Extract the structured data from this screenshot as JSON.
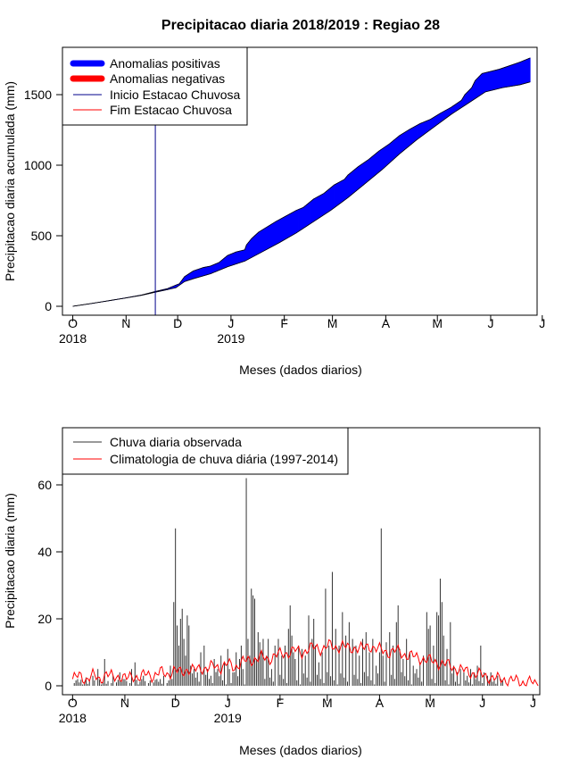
{
  "title": "Precipitacao diaria 2018/2019 : Regiao 28",
  "colors": {
    "positive": "#0000ff",
    "negative": "#ff0000",
    "start_line": "#00008b",
    "end_line": "#ff0000",
    "observed": "#333333",
    "climatology": "#ff0000"
  },
  "chart_data": [
    {
      "type": "area",
      "name": "accumulated",
      "ylabel": "Precipitacao diaria acumulada (mm)",
      "xlabel": "Meses (dados diarios)",
      "ylim": [
        0,
        1800
      ],
      "yticks": [
        0,
        500,
        1000,
        1500
      ],
      "xlim_days": [
        -6,
        270
      ],
      "month_ticks": [
        {
          "day": 0,
          "label": "O"
        },
        {
          "day": 31,
          "label": "N"
        },
        {
          "day": 61,
          "label": "D"
        },
        {
          "day": 92,
          "label": "J"
        },
        {
          "day": 123,
          "label": "F"
        },
        {
          "day": 151,
          "label": "M"
        },
        {
          "day": 182,
          "label": "A"
        },
        {
          "day": 212,
          "label": "M"
        },
        {
          "day": 243,
          "label": "J"
        },
        {
          "day": 273,
          "label": "J"
        }
      ],
      "year_labels": [
        {
          "day": 0,
          "label": "2018"
        },
        {
          "day": 92,
          "label": "2019"
        }
      ],
      "legend": {
        "position": "top-left",
        "entries": [
          {
            "label": "Anomalias positivas",
            "style": "thick",
            "color": "#0000ff"
          },
          {
            "label": "Anomalias negativas",
            "style": "thick",
            "color": "#ff0000"
          },
          {
            "label": "Inicio Estacao Chuvosa",
            "style": "thin",
            "color": "#00008b"
          },
          {
            "label": "Fim Estacao Chuvosa",
            "style": "thin",
            "color": "#ff0000"
          }
        ]
      },
      "season_start_day": 48,
      "observed_points": [
        [
          0,
          0
        ],
        [
          10,
          18
        ],
        [
          20,
          38
        ],
        [
          30,
          58
        ],
        [
          40,
          80
        ],
        [
          48,
          105
        ],
        [
          55,
          125
        ],
        [
          58,
          140
        ],
        [
          60,
          150
        ],
        [
          62,
          160
        ],
        [
          65,
          210
        ],
        [
          70,
          250
        ],
        [
          76,
          275
        ],
        [
          80,
          285
        ],
        [
          85,
          310
        ],
        [
          90,
          360
        ],
        [
          95,
          385
        ],
        [
          100,
          400
        ],
        [
          101,
          435
        ],
        [
          104,
          480
        ],
        [
          108,
          525
        ],
        [
          112,
          555
        ],
        [
          118,
          600
        ],
        [
          124,
          640
        ],
        [
          130,
          680
        ],
        [
          134,
          700
        ],
        [
          140,
          760
        ],
        [
          146,
          800
        ],
        [
          152,
          860
        ],
        [
          158,
          900
        ],
        [
          160,
          930
        ],
        [
          166,
          990
        ],
        [
          172,
          1040
        ],
        [
          178,
          1100
        ],
        [
          184,
          1150
        ],
        [
          190,
          1210
        ],
        [
          196,
          1255
        ],
        [
          202,
          1295
        ],
        [
          208,
          1325
        ],
        [
          214,
          1370
        ],
        [
          220,
          1410
        ],
        [
          226,
          1460
        ],
        [
          228,
          1500
        ],
        [
          232,
          1550
        ],
        [
          234,
          1600
        ],
        [
          238,
          1650
        ],
        [
          248,
          1680
        ],
        [
          260,
          1730
        ],
        [
          266,
          1760
        ]
      ],
      "climatology_points": [
        [
          0,
          0
        ],
        [
          10,
          18
        ],
        [
          20,
          37
        ],
        [
          30,
          57
        ],
        [
          40,
          78
        ],
        [
          48,
          100
        ],
        [
          55,
          118
        ],
        [
          60,
          132
        ],
        [
          65,
          175
        ],
        [
          70,
          195
        ],
        [
          80,
          230
        ],
        [
          90,
          280
        ],
        [
          100,
          320
        ],
        [
          110,
          385
        ],
        [
          120,
          450
        ],
        [
          130,
          520
        ],
        [
          140,
          600
        ],
        [
          150,
          680
        ],
        [
          160,
          770
        ],
        [
          170,
          870
        ],
        [
          180,
          970
        ],
        [
          190,
          1080
        ],
        [
          200,
          1180
        ],
        [
          210,
          1270
        ],
        [
          220,
          1360
        ],
        [
          230,
          1440
        ],
        [
          240,
          1520
        ],
        [
          250,
          1550
        ],
        [
          260,
          1570
        ],
        [
          266,
          1590
        ]
      ]
    },
    {
      "type": "bar",
      "name": "daily",
      "ylabel": "Precipitacao diaria (mm)",
      "xlabel": "Meses (dados diarios)",
      "ylim": [
        0,
        75
      ],
      "yticks": [
        0,
        20,
        40,
        60
      ],
      "xlim_days": [
        -6,
        277
      ],
      "legend": {
        "position": "top-left",
        "entries": [
          {
            "label": "Chuva diaria observada",
            "color": "#333333"
          },
          {
            "label": "Climatologia de chuva diária (1997-2014)",
            "color": "#ff0000"
          }
        ]
      },
      "observed_peaks": [
        [
          3,
          2
        ],
        [
          8,
          2.5
        ],
        [
          12,
          3
        ],
        [
          15,
          5
        ],
        [
          19,
          8
        ],
        [
          24,
          3
        ],
        [
          28,
          4
        ],
        [
          31,
          2
        ],
        [
          35,
          5
        ],
        [
          37,
          7
        ],
        [
          42,
          3
        ],
        [
          50,
          2
        ],
        [
          54,
          3
        ],
        [
          58,
          6
        ],
        [
          60,
          25
        ],
        [
          61,
          47
        ],
        [
          62,
          18
        ],
        [
          63,
          12
        ],
        [
          64,
          20
        ],
        [
          65,
          23
        ],
        [
          66,
          14
        ],
        [
          67,
          9
        ],
        [
          68,
          21
        ],
        [
          69,
          18
        ],
        [
          70,
          6
        ],
        [
          72,
          5
        ],
        [
          74,
          4
        ],
        [
          76,
          10
        ],
        [
          78,
          12
        ],
        [
          80,
          5
        ],
        [
          82,
          3
        ],
        [
          84,
          8
        ],
        [
          86,
          5
        ],
        [
          88,
          9
        ],
        [
          90,
          7
        ],
        [
          92,
          11
        ],
        [
          93,
          5
        ],
        [
          95,
          4
        ],
        [
          97,
          10
        ],
        [
          99,
          8
        ],
        [
          100,
          12
        ],
        [
          101,
          5
        ],
        [
          103,
          62
        ],
        [
          104,
          14
        ],
        [
          105,
          9
        ],
        [
          106,
          29
        ],
        [
          107,
          27
        ],
        [
          108,
          26
        ],
        [
          109,
          8
        ],
        [
          110,
          16
        ],
        [
          111,
          13
        ],
        [
          112,
          10
        ],
        [
          113,
          14
        ],
        [
          115,
          9
        ],
        [
          116,
          14
        ],
        [
          118,
          5
        ],
        [
          120,
          12
        ],
        [
          122,
          14
        ],
        [
          124,
          9
        ],
        [
          126,
          12
        ],
        [
          128,
          17
        ],
        [
          129,
          24
        ],
        [
          130,
          15
        ],
        [
          131,
          10
        ],
        [
          132,
          8
        ],
        [
          134,
          12
        ],
        [
          136,
          11
        ],
        [
          138,
          9
        ],
        [
          140,
          21
        ],
        [
          142,
          14
        ],
        [
          143,
          20
        ],
        [
          144,
          12
        ],
        [
          146,
          7
        ],
        [
          148,
          10
        ],
        [
          150,
          29
        ],
        [
          152,
          12
        ],
        [
          154,
          34
        ],
        [
          156,
          17
        ],
        [
          158,
          12
        ],
        [
          160,
          22
        ],
        [
          162,
          15
        ],
        [
          164,
          19
        ],
        [
          166,
          14
        ],
        [
          168,
          12
        ],
        [
          170,
          9
        ],
        [
          172,
          14
        ],
        [
          174,
          16
        ],
        [
          176,
          10
        ],
        [
          178,
          14
        ],
        [
          180,
          6
        ],
        [
          182,
          10
        ],
        [
          183,
          47
        ],
        [
          184,
          9
        ],
        [
          186,
          13
        ],
        [
          188,
          16
        ],
        [
          190,
          12
        ],
        [
          192,
          19
        ],
        [
          193,
          24
        ],
        [
          194,
          11
        ],
        [
          196,
          8
        ],
        [
          198,
          14
        ],
        [
          200,
          10
        ],
        [
          202,
          6
        ],
        [
          204,
          5
        ],
        [
          206,
          7
        ],
        [
          208,
          9
        ],
        [
          210,
          22
        ],
        [
          211,
          17
        ],
        [
          212,
          18
        ],
        [
          214,
          12
        ],
        [
          216,
          22
        ],
        [
          217,
          21
        ],
        [
          218,
          32
        ],
        [
          219,
          25
        ],
        [
          220,
          15
        ],
        [
          222,
          11
        ],
        [
          224,
          19
        ],
        [
          226,
          6
        ],
        [
          228,
          4
        ],
        [
          230,
          5
        ],
        [
          232,
          4
        ],
        [
          234,
          3
        ],
        [
          236,
          5
        ],
        [
          238,
          4
        ],
        [
          240,
          6
        ],
        [
          242,
          12
        ],
        [
          244,
          4
        ],
        [
          246,
          3
        ],
        [
          248,
          4
        ],
        [
          250,
          2
        ],
        [
          252,
          3
        ],
        [
          254,
          2
        ]
      ],
      "climatology_points": [
        [
          0,
          2
        ],
        [
          4,
          3
        ],
        [
          8,
          2
        ],
        [
          12,
          3
        ],
        [
          16,
          2
        ],
        [
          20,
          3.5
        ],
        [
          24,
          2.5
        ],
        [
          28,
          3
        ],
        [
          32,
          2
        ],
        [
          36,
          3
        ],
        [
          40,
          2.5
        ],
        [
          44,
          3.5
        ],
        [
          48,
          3
        ],
        [
          52,
          4
        ],
        [
          56,
          3.5
        ],
        [
          60,
          4.5
        ],
        [
          64,
          4
        ],
        [
          68,
          5
        ],
        [
          72,
          4.5
        ],
        [
          76,
          5.5
        ],
        [
          80,
          5
        ],
        [
          84,
          6
        ],
        [
          88,
          5.5
        ],
        [
          92,
          6.5
        ],
        [
          96,
          5.5
        ],
        [
          100,
          7
        ],
        [
          104,
          7.5
        ],
        [
          108,
          8
        ],
        [
          112,
          8.5
        ],
        [
          116,
          8
        ],
        [
          120,
          9
        ],
        [
          124,
          9.5
        ],
        [
          128,
          10
        ],
        [
          132,
          10.5
        ],
        [
          136,
          10
        ],
        [
          140,
          11
        ],
        [
          144,
          11.5
        ],
        [
          148,
          11
        ],
        [
          152,
          12
        ],
        [
          156,
          11.5
        ],
        [
          160,
          12
        ],
        [
          164,
          11
        ],
        [
          168,
          11.5
        ],
        [
          172,
          11
        ],
        [
          176,
          12
        ],
        [
          180,
          11
        ],
        [
          184,
          10.5
        ],
        [
          188,
          10
        ],
        [
          192,
          10.5
        ],
        [
          196,
          9.5
        ],
        [
          200,
          9
        ],
        [
          204,
          8.5
        ],
        [
          208,
          8
        ],
        [
          212,
          7.5
        ],
        [
          216,
          7
        ],
        [
          220,
          6.5
        ],
        [
          224,
          6
        ],
        [
          228,
          5
        ],
        [
          232,
          4.5
        ],
        [
          236,
          4
        ],
        [
          240,
          3.5
        ],
        [
          244,
          3
        ],
        [
          248,
          2.5
        ],
        [
          252,
          2
        ],
        [
          256,
          2
        ],
        [
          260,
          1.5
        ],
        [
          264,
          1.5
        ],
        [
          268,
          1
        ],
        [
          272,
          1
        ],
        [
          276,
          0.5
        ]
      ]
    }
  ]
}
